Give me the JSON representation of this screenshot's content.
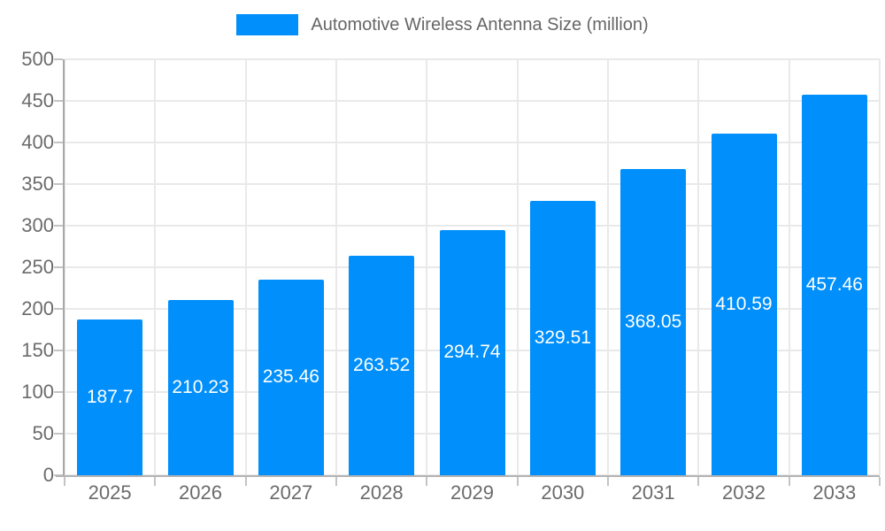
{
  "legend": {
    "label": "Automotive Wireless Antenna Size (million)"
  },
  "colors": {
    "bar": "#008FFB",
    "grid": "#e9e9e9",
    "axis": "#a8a8a8",
    "tick": "#c4c4c4",
    "text": "#6b6b6b",
    "legend_text": "#666666",
    "value_label": "#ffffff",
    "background": "#ffffff"
  },
  "chart_data": {
    "type": "bar",
    "title": "Automotive Wireless Antenna Size (million)",
    "categories": [
      "2025",
      "2026",
      "2027",
      "2028",
      "2029",
      "2030",
      "2031",
      "2032",
      "2033"
    ],
    "values": [
      187.7,
      210.23,
      235.46,
      263.52,
      294.74,
      329.51,
      368.05,
      410.59,
      457.46
    ],
    "value_labels": [
      "187.7",
      "210.23",
      "235.46",
      "263.52",
      "294.74",
      "329.51",
      "368.05",
      "410.59",
      "457.46"
    ],
    "xlabel": "",
    "ylabel": "",
    "ylim": [
      0,
      500
    ],
    "ytick_step": 50,
    "ytick_labels": [
      "0",
      "50",
      "100",
      "150",
      "200",
      "250",
      "300",
      "350",
      "400",
      "450",
      "500"
    ],
    "grid": true,
    "legend_position": "top",
    "value_labels_position": "center-inside",
    "bar_color": "#008FFB"
  }
}
